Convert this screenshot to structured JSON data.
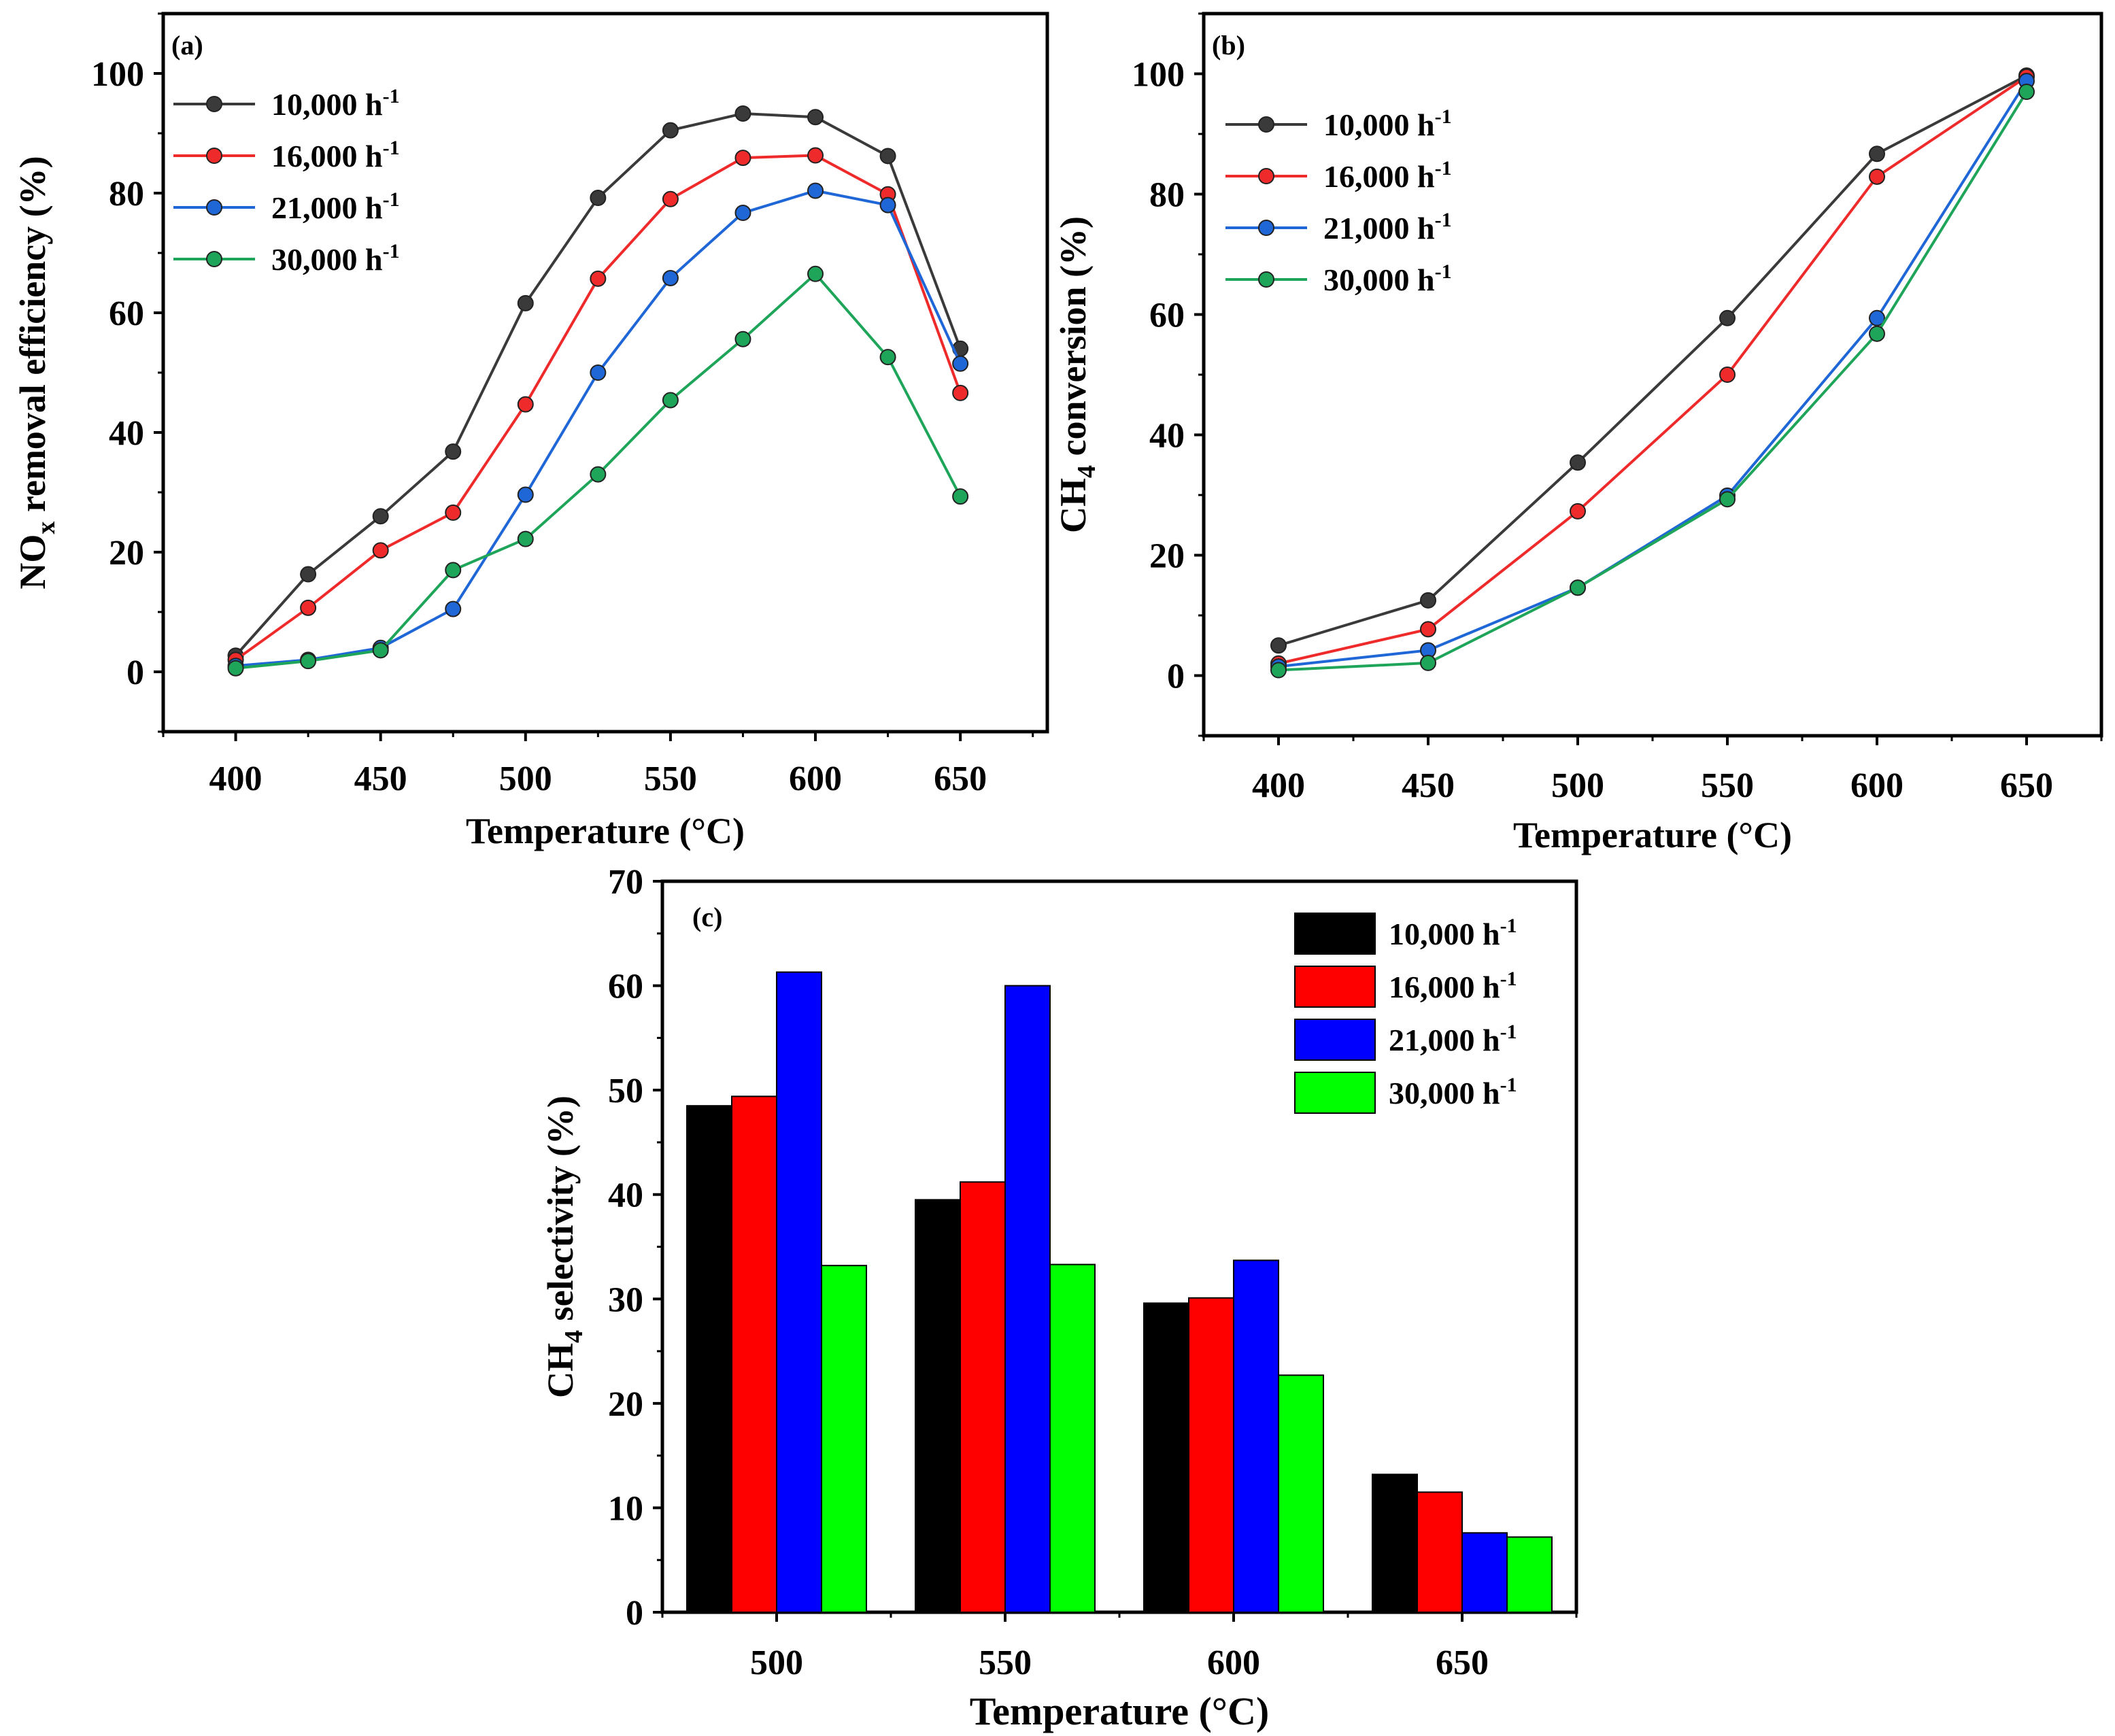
{
  "colors": {
    "10000": "#3a3a3a",
    "16000": "#ee2a2a",
    "21000": "#1f66d6",
    "30000": "#1fa55a",
    "bar_10000": "#000000",
    "bar_16000": "#ff0000",
    "bar_21000": "#0000ff",
    "bar_30000": "#00ff00"
  },
  "chart_data": [
    {
      "id": "a",
      "type": "line",
      "panel_label": "(a)",
      "xlabel": "Temperature (°C)",
      "ylabel_main": "NO",
      "ylabel_sub": "x",
      "ylabel_rest": " removal efficiency (%)",
      "xlim": [
        375,
        680
      ],
      "ylim": [
        -10,
        110
      ],
      "xticks": [
        400,
        450,
        500,
        550,
        600,
        650
      ],
      "yticks": [
        0,
        20,
        40,
        60,
        80,
        100
      ],
      "legend_position": "top-left",
      "series": [
        {
          "key": "10000",
          "name": "10,000 h",
          "sup": "-1",
          "x": [
            400,
            425,
            450,
            475,
            500,
            525,
            550,
            575,
            600,
            625,
            650
          ],
          "values": [
            2.7,
            16.3,
            26.0,
            36.8,
            61.6,
            79.2,
            90.5,
            93.3,
            92.7,
            86.2,
            54.0
          ]
        },
        {
          "key": "16000",
          "name": "16,000 h",
          "sup": "-1",
          "x": [
            400,
            425,
            450,
            475,
            500,
            525,
            550,
            575,
            600,
            625,
            650
          ],
          "values": [
            2.0,
            10.7,
            20.3,
            26.6,
            44.7,
            65.7,
            79.0,
            85.9,
            86.3,
            79.8,
            46.6
          ]
        },
        {
          "key": "21000",
          "name": "21,000 h",
          "sup": "-1",
          "x": [
            400,
            425,
            450,
            475,
            500,
            525,
            550,
            575,
            600,
            625,
            650
          ],
          "values": [
            1.0,
            2.0,
            4.0,
            10.5,
            29.6,
            50.0,
            65.8,
            76.7,
            80.4,
            78.0,
            51.5
          ]
        },
        {
          "key": "30000",
          "name": "30,000 h",
          "sup": "-1",
          "x": [
            400,
            425,
            450,
            475,
            500,
            525,
            550,
            575,
            600,
            625,
            650
          ],
          "values": [
            0.6,
            1.8,
            3.6,
            17.0,
            22.2,
            33.0,
            45.4,
            55.6,
            66.5,
            52.6,
            29.3
          ]
        }
      ]
    },
    {
      "id": "b",
      "type": "line",
      "panel_label": "(b)",
      "xlabel": "Temperature (°C)",
      "ylabel_main": "CH",
      "ylabel_sub": "4",
      "ylabel_rest": " conversion (%)",
      "xlim": [
        375,
        675
      ],
      "ylim": [
        -10,
        110
      ],
      "xticks": [
        400,
        450,
        500,
        550,
        600,
        650
      ],
      "yticks": [
        0,
        20,
        40,
        60,
        80,
        100
      ],
      "legend_position": "top-left",
      "series": [
        {
          "key": "10000",
          "name": "10,000 h",
          "sup": "-1",
          "x": [
            400,
            450,
            500,
            550,
            600,
            650
          ],
          "values": [
            5.0,
            12.5,
            35.4,
            59.4,
            86.7,
            99.7
          ]
        },
        {
          "key": "16000",
          "name": "16,000 h",
          "sup": "-1",
          "x": [
            400,
            450,
            500,
            550,
            600,
            650
          ],
          "values": [
            2.0,
            7.7,
            27.3,
            50.0,
            82.9,
            99.5
          ]
        },
        {
          "key": "21000",
          "name": "21,000 h",
          "sup": "-1",
          "x": [
            400,
            450,
            500,
            550,
            600,
            650
          ],
          "values": [
            1.5,
            4.2,
            14.6,
            29.9,
            59.4,
            98.8
          ]
        },
        {
          "key": "30000",
          "name": "30,000 h",
          "sup": "-1",
          "x": [
            400,
            450,
            500,
            550,
            600,
            650
          ],
          "values": [
            0.9,
            2.1,
            14.6,
            29.3,
            56.8,
            97.0
          ]
        }
      ]
    },
    {
      "id": "c",
      "type": "bar",
      "panel_label": "(c)",
      "xlabel": "Temperature (°C)",
      "ylabel_main": "CH",
      "ylabel_sub": "4",
      "ylabel_rest": " selectivity (%)",
      "categories": [
        "500",
        "550",
        "600",
        "650"
      ],
      "ylim": [
        0,
        70
      ],
      "yticks": [
        0,
        10,
        20,
        30,
        40,
        50,
        60,
        70
      ],
      "legend_position": "top-right",
      "series": [
        {
          "key": "bar_10000",
          "name": "10,000 h",
          "sup": "-1",
          "values": [
            48.5,
            39.5,
            29.6,
            13.2
          ]
        },
        {
          "key": "bar_16000",
          "name": "16,000 h",
          "sup": "-1",
          "values": [
            49.4,
            41.2,
            30.1,
            11.5
          ]
        },
        {
          "key": "bar_21000",
          "name": "21,000 h",
          "sup": "-1",
          "values": [
            61.3,
            60.0,
            33.7,
            7.6
          ]
        },
        {
          "key": "bar_30000",
          "name": "30,000 h",
          "sup": "-1",
          "values": [
            33.2,
            33.3,
            22.7,
            7.2
          ]
        }
      ]
    }
  ]
}
